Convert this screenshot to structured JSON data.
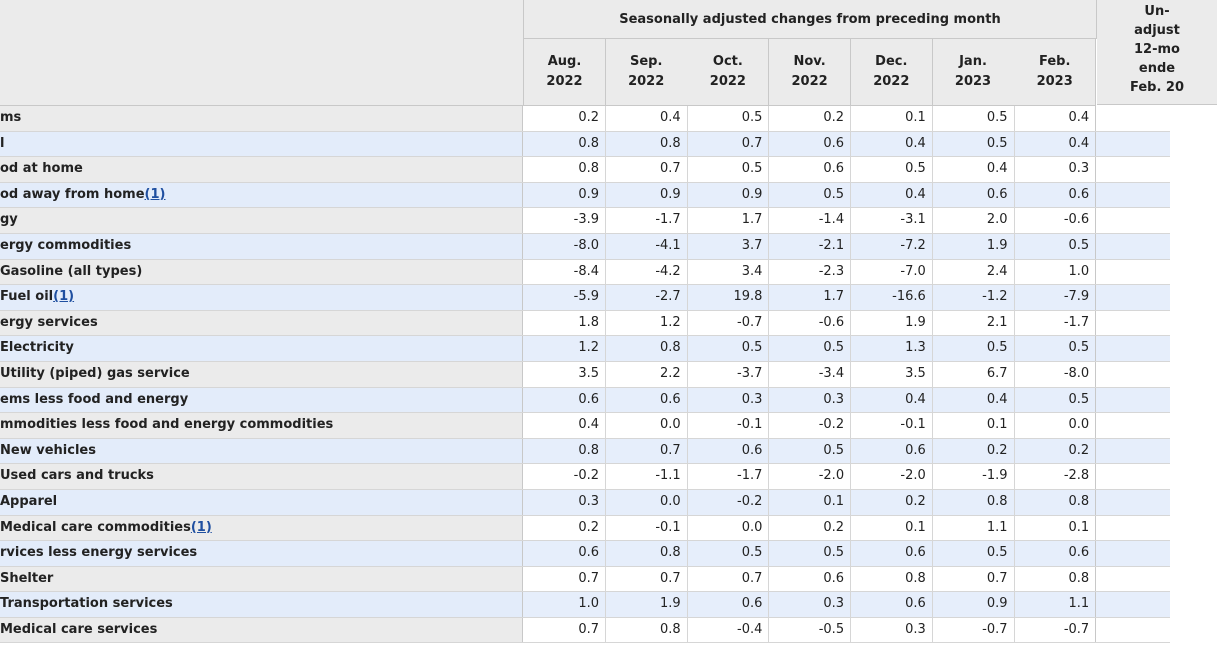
{
  "header": {
    "group_title": "Seasonally adjusted changes from preceding month",
    "months": [
      {
        "month": "Aug.",
        "year": "2022"
      },
      {
        "month": "Sep.",
        "year": "2022"
      },
      {
        "month": "Oct.",
        "year": "2022"
      },
      {
        "month": "Nov.",
        "year": "2022"
      },
      {
        "month": "Dec.",
        "year": "2022"
      },
      {
        "month": "Jan.",
        "year": "2023"
      },
      {
        "month": "Feb.",
        "year": "2023"
      }
    ],
    "right_lines": [
      "Un-",
      "adjust",
      "12-mo",
      "ende",
      "Feb. 20"
    ]
  },
  "rows": [
    {
      "label": "ms",
      "fn": "",
      "values": [
        "0.2",
        "0.4",
        "0.5",
        "0.2",
        "0.1",
        "0.5",
        "0.4"
      ]
    },
    {
      "label": "l",
      "fn": "",
      "values": [
        "0.8",
        "0.8",
        "0.7",
        "0.6",
        "0.4",
        "0.5",
        "0.4"
      ]
    },
    {
      "label": "od at home",
      "fn": "",
      "values": [
        "0.8",
        "0.7",
        "0.5",
        "0.6",
        "0.5",
        "0.4",
        "0.3"
      ]
    },
    {
      "label": "od away from home",
      "fn": "(1)",
      "values": [
        "0.9",
        "0.9",
        "0.9",
        "0.5",
        "0.4",
        "0.6",
        "0.6"
      ]
    },
    {
      "label": "gy",
      "fn": "",
      "values": [
        "-3.9",
        "-1.7",
        "1.7",
        "-1.4",
        "-3.1",
        "2.0",
        "-0.6"
      ]
    },
    {
      "label": "ergy commodities",
      "fn": "",
      "values": [
        "-8.0",
        "-4.1",
        "3.7",
        "-2.1",
        "-7.2",
        "1.9",
        "0.5"
      ]
    },
    {
      "label": "Gasoline (all types)",
      "fn": "",
      "values": [
        "-8.4",
        "-4.2",
        "3.4",
        "-2.3",
        "-7.0",
        "2.4",
        "1.0"
      ]
    },
    {
      "label": "Fuel oil",
      "fn": "(1)",
      "values": [
        "-5.9",
        "-2.7",
        "19.8",
        "1.7",
        "-16.6",
        "-1.2",
        "-7.9"
      ]
    },
    {
      "label": "ergy services",
      "fn": "",
      "values": [
        "1.8",
        "1.2",
        "-0.7",
        "-0.6",
        "1.9",
        "2.1",
        "-1.7"
      ]
    },
    {
      "label": "Electricity",
      "fn": "",
      "values": [
        "1.2",
        "0.8",
        "0.5",
        "0.5",
        "1.3",
        "0.5",
        "0.5"
      ]
    },
    {
      "label": "Utility (piped) gas service",
      "fn": "",
      "values": [
        "3.5",
        "2.2",
        "-3.7",
        "-3.4",
        "3.5",
        "6.7",
        "-8.0"
      ]
    },
    {
      "label": "ems less food and energy",
      "fn": "",
      "values": [
        "0.6",
        "0.6",
        "0.3",
        "0.3",
        "0.4",
        "0.4",
        "0.5"
      ]
    },
    {
      "label": "mmodities less food and energy commodities",
      "fn": "",
      "values": [
        "0.4",
        "0.0",
        "-0.1",
        "-0.2",
        "-0.1",
        "0.1",
        "0.0"
      ]
    },
    {
      "label": "New vehicles",
      "fn": "",
      "values": [
        "0.8",
        "0.7",
        "0.6",
        "0.5",
        "0.6",
        "0.2",
        "0.2"
      ]
    },
    {
      "label": "Used cars and trucks",
      "fn": "",
      "values": [
        "-0.2",
        "-1.1",
        "-1.7",
        "-2.0",
        "-2.0",
        "-1.9",
        "-2.8"
      ]
    },
    {
      "label": "Apparel",
      "fn": "",
      "values": [
        "0.3",
        "0.0",
        "-0.2",
        "0.1",
        "0.2",
        "0.8",
        "0.8"
      ]
    },
    {
      "label": "Medical care commodities",
      "fn": "(1)",
      "values": [
        "0.2",
        "-0.1",
        "0.0",
        "0.2",
        "0.1",
        "1.1",
        "0.1"
      ]
    },
    {
      "label": "rvices less energy services",
      "fn": "",
      "values": [
        "0.6",
        "0.8",
        "0.5",
        "0.5",
        "0.6",
        "0.5",
        "0.6"
      ]
    },
    {
      "label": "Shelter",
      "fn": "",
      "values": [
        "0.7",
        "0.7",
        "0.7",
        "0.6",
        "0.8",
        "0.7",
        "0.8"
      ]
    },
    {
      "label": "Transportation services",
      "fn": "",
      "values": [
        "1.0",
        "1.9",
        "0.6",
        "0.3",
        "0.6",
        "0.9",
        "1.1"
      ]
    },
    {
      "label": "Medical care services",
      "fn": "",
      "values": [
        "0.7",
        "0.8",
        "-0.4",
        "-0.5",
        "0.3",
        "-0.7",
        "-0.7"
      ]
    }
  ]
}
